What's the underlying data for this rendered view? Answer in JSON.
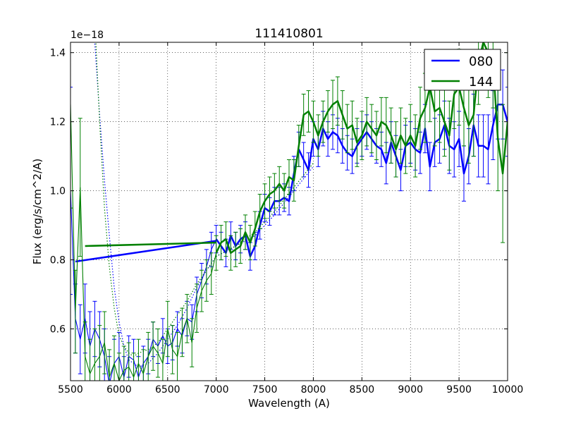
{
  "chart_data": {
    "type": "line",
    "title": "111410801",
    "xlabel": "Wavelength (A)",
    "ylabel": "Flux (erg/s/cm^2/A)",
    "offset_text": "1e−18",
    "xlim": [
      5500,
      10000
    ],
    "ylim": [
      0.45,
      1.43
    ],
    "xticks": [
      5500,
      6000,
      6500,
      7000,
      7500,
      8000,
      8500,
      9000,
      9500,
      10000
    ],
    "xtick_labels": [
      "5500",
      "6000",
      "6500",
      "7000",
      "7500",
      "8000",
      "8500",
      "9000",
      "9500",
      "10000"
    ],
    "yticks": [
      0.6,
      0.8,
      1.0,
      1.2,
      1.4
    ],
    "ytick_labels": [
      "0.6",
      "0.8",
      "1.0",
      "1.2",
      "1.4"
    ],
    "grid": true,
    "legend_position": "top-right",
    "colors": {
      "080": "#0000ff",
      "144": "#008000"
    },
    "series": [
      {
        "name": "080",
        "color": "#0000ff",
        "x": [
          5500,
          5550,
          5600,
          5650,
          5700,
          5750,
          5800,
          5850,
          5900,
          5950,
          6000,
          6050,
          6100,
          6150,
          6200,
          6250,
          6300,
          6350,
          6400,
          6450,
          6500,
          6550,
          6600,
          6650,
          6700,
          6750,
          6800,
          6850,
          6900,
          6950,
          7000,
          7050,
          7100,
          7150,
          7200,
          7250,
          7300,
          7350,
          7400,
          7450,
          7500,
          7550,
          7600,
          7650,
          7700,
          7750,
          7800,
          7850,
          7900,
          7950,
          8000,
          8050,
          8100,
          8150,
          8200,
          8250,
          8300,
          8350,
          8400,
          8450,
          8500,
          8550,
          8600,
          8650,
          8700,
          8750,
          8800,
          8850,
          8900,
          8950,
          9000,
          9050,
          9100,
          9150,
          9200,
          9250,
          9300,
          9350,
          9400,
          9450,
          9500,
          9550,
          9600,
          9650,
          9700,
          9750,
          9800,
          9850,
          9900,
          9950,
          10000
        ],
        "y": [
          1.0,
          0.63,
          0.57,
          0.63,
          0.55,
          0.6,
          0.57,
          0.52,
          0.44,
          0.5,
          0.52,
          0.46,
          0.52,
          0.51,
          0.46,
          0.5,
          0.52,
          0.57,
          0.55,
          0.58,
          0.55,
          0.56,
          0.6,
          0.58,
          0.63,
          0.62,
          0.7,
          0.74,
          0.78,
          0.83,
          0.86,
          0.84,
          0.82,
          0.87,
          0.84,
          0.86,
          0.87,
          0.81,
          0.84,
          0.9,
          0.95,
          0.94,
          0.97,
          0.97,
          0.98,
          0.97,
          1.05,
          1.12,
          1.09,
          1.06,
          1.15,
          1.12,
          1.18,
          1.15,
          1.17,
          1.16,
          1.13,
          1.11,
          1.1,
          1.13,
          1.15,
          1.17,
          1.15,
          1.13,
          1.12,
          1.08,
          1.14,
          1.1,
          1.06,
          1.13,
          1.14,
          1.12,
          1.11,
          1.18,
          1.07,
          1.14,
          1.15,
          1.19,
          1.13,
          1.12,
          1.15,
          1.05,
          1.1,
          1.19,
          1.13,
          1.13,
          1.12,
          1.19,
          1.25,
          1.25,
          1.2
        ],
        "err": [
          0.3,
          0.1,
          0.1,
          0.1,
          0.1,
          0.08,
          0.08,
          0.08,
          0.08,
          0.07,
          0.07,
          0.06,
          0.06,
          0.06,
          0.06,
          0.05,
          0.05,
          0.05,
          0.05,
          0.05,
          0.05,
          0.05,
          0.05,
          0.05,
          0.05,
          0.05,
          0.05,
          0.05,
          0.05,
          0.05,
          0.04,
          0.04,
          0.04,
          0.04,
          0.04,
          0.04,
          0.04,
          0.04,
          0.04,
          0.04,
          0.04,
          0.04,
          0.04,
          0.04,
          0.04,
          0.04,
          0.05,
          0.05,
          0.05,
          0.05,
          0.05,
          0.05,
          0.05,
          0.05,
          0.05,
          0.05,
          0.05,
          0.05,
          0.05,
          0.05,
          0.05,
          0.05,
          0.05,
          0.05,
          0.05,
          0.06,
          0.06,
          0.06,
          0.06,
          0.06,
          0.06,
          0.06,
          0.06,
          0.07,
          0.07,
          0.07,
          0.07,
          0.07,
          0.08,
          0.08,
          0.08,
          0.08,
          0.08,
          0.09,
          0.09,
          0.09,
          0.1,
          0.1,
          0.1,
          0.1,
          0.1
        ],
        "gap_line": {
          "x": [
            5550,
            7000
          ],
          "y": [
            0.795,
            0.855
          ]
        },
        "model_x": [
          5500,
          5600,
          5700,
          5750,
          5800,
          5850,
          5900,
          5950,
          6000,
          6050,
          6100,
          6200,
          6300,
          6400,
          6500,
          6600,
          6700,
          6800,
          6900,
          7000,
          7200,
          7400,
          7600,
          7800,
          8000
        ],
        "model_y": [
          2.6,
          2.1,
          1.65,
          1.43,
          1.22,
          1.03,
          0.87,
          0.72,
          0.62,
          0.55,
          0.51,
          0.49,
          0.5,
          0.53,
          0.57,
          0.61,
          0.66,
          0.72,
          0.77,
          0.81,
          0.84,
          0.87,
          0.93,
          1.0,
          1.07
        ]
      },
      {
        "name": "144",
        "color": "#008000",
        "x": [
          5500,
          5550,
          5600,
          5650,
          5700,
          5750,
          5800,
          5850,
          5900,
          5950,
          6000,
          6050,
          6100,
          6150,
          6200,
          6250,
          6300,
          6350,
          6400,
          6450,
          6500,
          6550,
          6600,
          6650,
          6700,
          6750,
          6800,
          6850,
          6900,
          6950,
          7000,
          7050,
          7100,
          7150,
          7200,
          7250,
          7300,
          7350,
          7400,
          7450,
          7500,
          7550,
          7600,
          7650,
          7700,
          7750,
          7800,
          7850,
          7900,
          7950,
          8000,
          8050,
          8100,
          8150,
          8200,
          8250,
          8300,
          8350,
          8400,
          8450,
          8500,
          8550,
          8600,
          8650,
          8700,
          8750,
          8800,
          8850,
          8900,
          8950,
          9000,
          9050,
          9100,
          9150,
          9200,
          9250,
          9300,
          9350,
          9400,
          9450,
          9500,
          9550,
          9600,
          9650,
          9700,
          9750,
          9800,
          9850,
          9900,
          9950,
          10000
        ],
        "y": [
          1.25,
          0.65,
          1.01,
          0.52,
          0.47,
          0.5,
          0.52,
          0.56,
          0.46,
          0.5,
          0.45,
          0.48,
          0.49,
          0.46,
          0.5,
          0.47,
          0.52,
          0.55,
          0.53,
          0.5,
          0.6,
          0.54,
          0.52,
          0.59,
          0.63,
          0.56,
          0.66,
          0.71,
          0.74,
          0.76,
          0.82,
          0.85,
          0.86,
          0.82,
          0.83,
          0.84,
          0.88,
          0.85,
          0.89,
          0.94,
          0.97,
          0.99,
          1.0,
          1.02,
          1.0,
          1.04,
          1.03,
          1.13,
          1.22,
          1.23,
          1.2,
          1.16,
          1.2,
          1.23,
          1.25,
          1.26,
          1.22,
          1.18,
          1.19,
          1.14,
          1.16,
          1.2,
          1.18,
          1.16,
          1.2,
          1.19,
          1.16,
          1.12,
          1.16,
          1.13,
          1.16,
          1.13,
          1.21,
          1.24,
          1.3,
          1.23,
          1.24,
          1.2,
          1.16,
          1.28,
          1.3,
          1.24,
          1.19,
          1.22,
          1.37,
          1.43,
          1.4,
          1.37,
          1.15,
          1.05,
          1.2
        ],
        "err": [
          0.3,
          0.12,
          0.2,
          0.1,
          0.1,
          0.1,
          0.09,
          0.09,
          0.08,
          0.08,
          0.08,
          0.07,
          0.07,
          0.07,
          0.07,
          0.07,
          0.07,
          0.07,
          0.07,
          0.07,
          0.08,
          0.07,
          0.07,
          0.07,
          0.07,
          0.07,
          0.07,
          0.06,
          0.06,
          0.06,
          0.05,
          0.05,
          0.05,
          0.05,
          0.05,
          0.05,
          0.05,
          0.05,
          0.05,
          0.05,
          0.05,
          0.05,
          0.05,
          0.05,
          0.05,
          0.05,
          0.06,
          0.06,
          0.06,
          0.06,
          0.06,
          0.06,
          0.06,
          0.06,
          0.07,
          0.07,
          0.07,
          0.07,
          0.07,
          0.07,
          0.07,
          0.07,
          0.07,
          0.07,
          0.07,
          0.08,
          0.08,
          0.08,
          0.08,
          0.08,
          0.09,
          0.09,
          0.09,
          0.1,
          0.1,
          0.1,
          0.1,
          0.1,
          0.1,
          0.1,
          0.11,
          0.11,
          0.11,
          0.12,
          0.12,
          0.12,
          0.13,
          0.13,
          0.15,
          0.2,
          0.2
        ],
        "gap_line": {
          "x": [
            5650,
            7000
          ],
          "y": [
            0.84,
            0.85
          ]
        },
        "model_x": [
          5750,
          5800,
          5850,
          5900,
          5950,
          6000,
          6050,
          6100,
          6150,
          6200,
          6300,
          6400,
          6500,
          6600,
          6700,
          6800,
          6900,
          7000,
          7200,
          7400,
          7600,
          7800,
          8000
        ],
        "model_y": [
          1.5,
          1.2,
          0.95,
          0.78,
          0.66,
          0.58,
          0.55,
          0.53,
          0.52,
          0.53,
          0.54,
          0.56,
          0.6,
          0.64,
          0.68,
          0.73,
          0.77,
          0.81,
          0.84,
          0.88,
          0.94,
          1.01,
          1.08
        ]
      }
    ]
  }
}
